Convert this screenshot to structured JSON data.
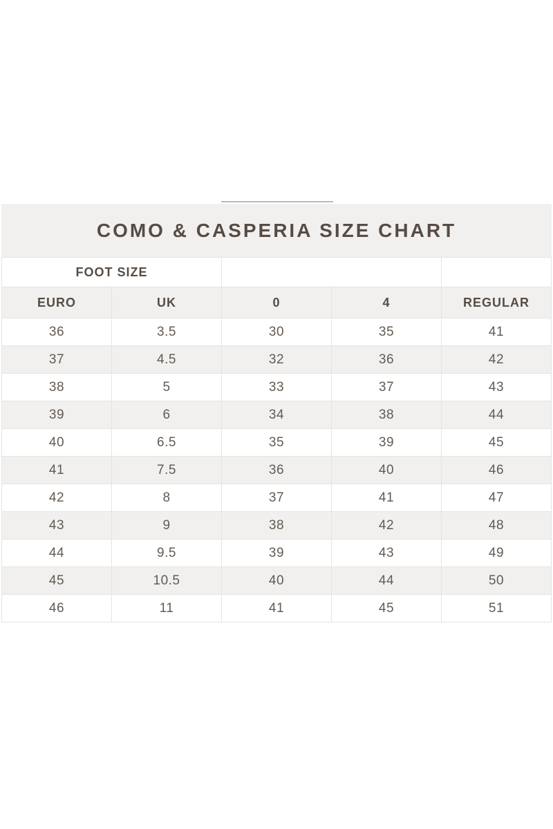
{
  "title_bar": {
    "label": "COMO & CASPERIA SIZE CHART"
  },
  "chart_data": {
    "type": "table",
    "title": "COMO & CASPERIA SIZE CHART",
    "group_header": "FOOT SIZE",
    "columns": [
      "EURO",
      "UK",
      "0",
      "4",
      "REGULAR"
    ],
    "rows": [
      [
        "36",
        "3.5",
        "30",
        "35",
        "41"
      ],
      [
        "37",
        "4.5",
        "32",
        "36",
        "42"
      ],
      [
        "38",
        "5",
        "33",
        "37",
        "43"
      ],
      [
        "39",
        "6",
        "34",
        "38",
        "44"
      ],
      [
        "40",
        "6.5",
        "35",
        "39",
        "45"
      ],
      [
        "41",
        "7.5",
        "36",
        "40",
        "46"
      ],
      [
        "42",
        "8",
        "37",
        "41",
        "47"
      ],
      [
        "43",
        "9",
        "38",
        "42",
        "48"
      ],
      [
        "44",
        "9.5",
        "39",
        "43",
        "49"
      ],
      [
        "45",
        "10.5",
        "40",
        "44",
        "50"
      ],
      [
        "46",
        "11",
        "41",
        "45",
        "51"
      ]
    ],
    "layout": {
      "striped_rows": true,
      "first_data_row_background": "white",
      "group_header_spans_columns": [
        "EURO",
        "UK"
      ]
    }
  },
  "colors": {
    "page_background": "#ffffff",
    "stripe_background": "#f1f0ee",
    "border": "#e6e4e1",
    "heading_text": "#564c44",
    "cell_text": "#635a52",
    "top_partial_line": "#b9b9b9"
  }
}
